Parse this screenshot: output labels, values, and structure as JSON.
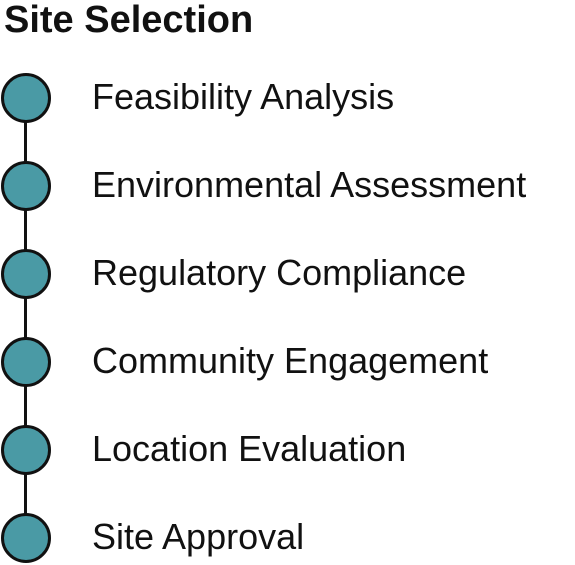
{
  "title": "Site Selection",
  "colors": {
    "node_fill": "#4a9aa5",
    "outline": "#111111",
    "text": "#111111",
    "background": "#ffffff"
  },
  "steps": [
    {
      "label": "Feasibility Analysis"
    },
    {
      "label": "Environmental Assessment"
    },
    {
      "label": "Regulatory Compliance"
    },
    {
      "label": "Community Engagement"
    },
    {
      "label": "Location Evaluation"
    },
    {
      "label": "Site Approval"
    }
  ]
}
